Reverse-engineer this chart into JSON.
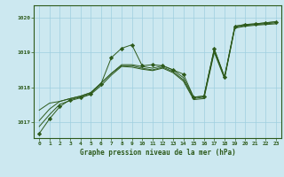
{
  "title": "Graphe pression niveau de la mer (hPa)",
  "background_color": "#cce8f0",
  "grid_color": "#9fcfdf",
  "line_color": "#2d5a1b",
  "marker_color": "#2d5a1b",
  "xlim": [
    -0.5,
    23.5
  ],
  "ylim": [
    1016.55,
    1020.35
  ],
  "yticks": [
    1017,
    1018,
    1019,
    1020
  ],
  "xticks": [
    0,
    1,
    2,
    3,
    4,
    5,
    6,
    7,
    8,
    9,
    10,
    11,
    12,
    13,
    14,
    15,
    16,
    17,
    18,
    19,
    20,
    21,
    22,
    23
  ],
  "series": [
    [
      1016.68,
      1017.1,
      1017.45,
      1017.65,
      1017.72,
      1017.82,
      1018.1,
      1018.85,
      1019.12,
      1019.22,
      1018.62,
      1018.65,
      1018.62,
      1018.5,
      1018.38,
      1017.72,
      1017.75,
      1019.1,
      1018.3,
      1019.75,
      1019.8,
      1019.82,
      1019.85,
      1019.88
    ],
    [
      1017.35,
      1017.55,
      1017.6,
      1017.68,
      1017.75,
      1017.85,
      1018.12,
      1018.4,
      1018.65,
      1018.65,
      1018.6,
      1018.55,
      1018.62,
      1018.5,
      1018.28,
      1017.72,
      1017.75,
      1019.1,
      1018.3,
      1019.75,
      1019.8,
      1019.82,
      1019.85,
      1019.88
    ],
    [
      1017.05,
      1017.38,
      1017.6,
      1017.68,
      1017.75,
      1017.85,
      1018.12,
      1018.4,
      1018.62,
      1018.62,
      1018.55,
      1018.5,
      1018.58,
      1018.45,
      1018.22,
      1017.68,
      1017.72,
      1019.05,
      1018.28,
      1019.72,
      1019.77,
      1019.8,
      1019.82,
      1019.85
    ],
    [
      1016.88,
      1017.22,
      1017.52,
      1017.62,
      1017.7,
      1017.8,
      1018.05,
      1018.35,
      1018.6,
      1018.58,
      1018.52,
      1018.48,
      1018.55,
      1018.42,
      1018.18,
      1017.65,
      1017.68,
      1019.0,
      1018.25,
      1019.7,
      1019.75,
      1019.78,
      1019.8,
      1019.82
    ]
  ],
  "main_series_idx": 0,
  "figsize": [
    3.2,
    2.0
  ],
  "dpi": 100
}
